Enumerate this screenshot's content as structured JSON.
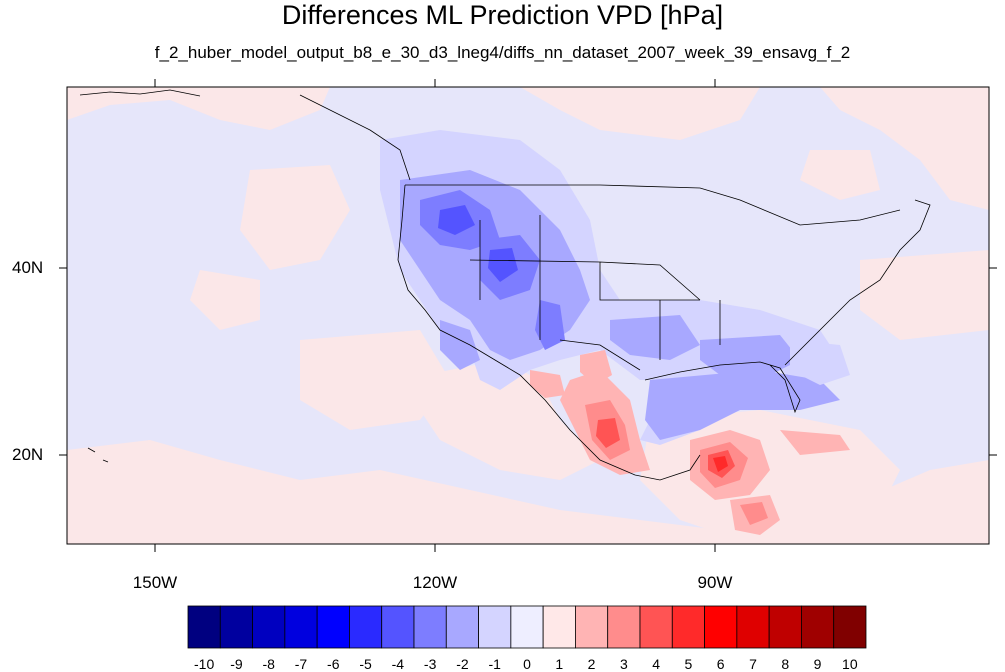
{
  "title": "Differences ML Prediction VPD [hPa]",
  "subtitle": "f_2_huber_model_output_b8_e_30_d3_lneg4/diffs_nn_dataset_2007_week_39_ensavg_f_2",
  "map": {
    "type": "filled-contour-map",
    "region": "North America / Eastern Pacific",
    "lon_range": [
      -159.4,
      -61.5
    ],
    "lat_range": [
      10,
      60
    ],
    "lat_labels": [
      "40N",
      "20N"
    ],
    "lon_labels": [
      "150W",
      "120W",
      "90W"
    ],
    "background_level": "-1 to 0",
    "features": [
      {
        "name": "western-us-negative",
        "range": "-5 to -2"
      },
      {
        "name": "gulf-coast-negative",
        "range": "-3 to -1"
      },
      {
        "name": "western-mexico-positive",
        "range": "1 to 5"
      },
      {
        "name": "central-america-positive",
        "range": "2 to 6"
      }
    ]
  },
  "colorbar": {
    "labels": [
      "-10",
      "-9",
      "-8",
      "-7",
      "-6",
      "-5",
      "-4",
      "-3",
      "-2",
      "-1",
      "0",
      "1",
      "2",
      "3",
      "4",
      "5",
      "6",
      "7",
      "8",
      "9",
      "10"
    ],
    "colors": [
      "#000080",
      "#00009f",
      "#0000c0",
      "#0000df",
      "#0000ff",
      "#2a2aff",
      "#5454ff",
      "#7d7dff",
      "#a8a8ff",
      "#d4d4ff",
      "#eeeeff",
      "#ffe8e8",
      "#ffb4b4",
      "#ff8c8c",
      "#ff5454",
      "#ff2a2a",
      "#ff0000",
      "#df0000",
      "#bf0000",
      "#9f0000",
      "#800000"
    ]
  },
  "colors": {
    "neutral_negative": "#e6e6fa",
    "neutral_positive": "#fbe7e8",
    "coastline": "#000000"
  }
}
